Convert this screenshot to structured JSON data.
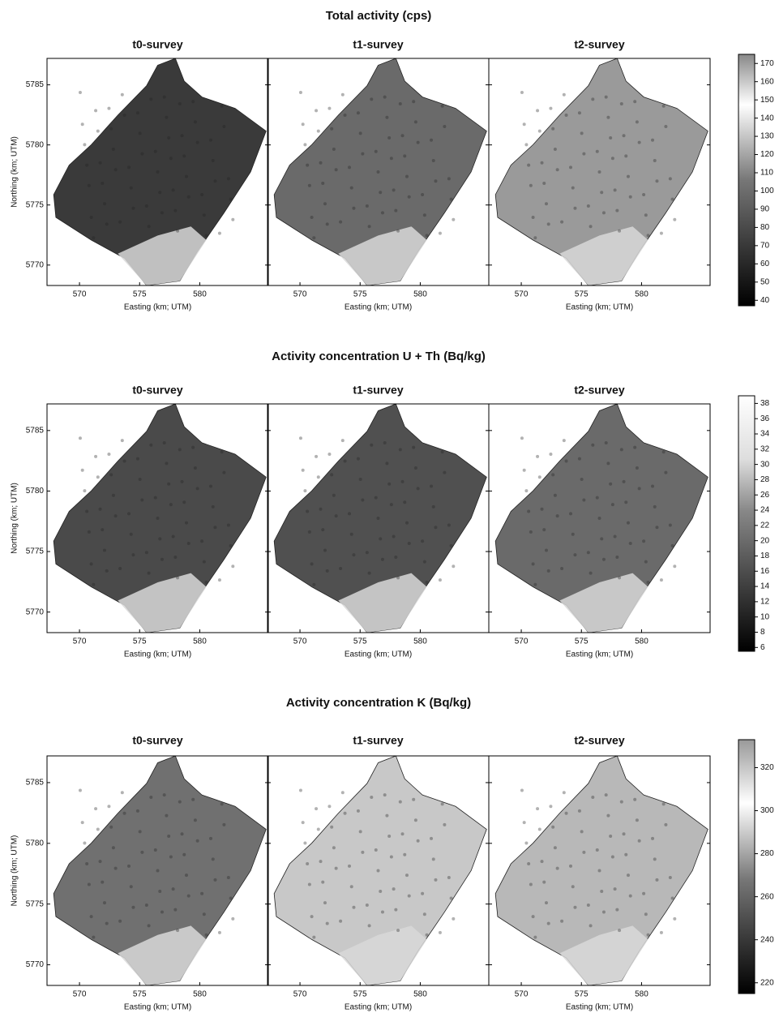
{
  "chart_data": [
    {
      "type": "heatmap",
      "title": "Total activity (cps)",
      "panels": [
        "t0-survey",
        "t1-survey",
        "t2-survey"
      ],
      "xlabel": "Easting (km; UTM)",
      "ylabel": "Northing (km; UTM)",
      "xlim": [
        567.3,
        585.7
      ],
      "ylim": [
        5768.3,
        5787.2
      ],
      "xticks": [
        570,
        575,
        580
      ],
      "yticks": [
        5770,
        5775,
        5780,
        5785
      ],
      "colorbar_lim": [
        37,
        175
      ],
      "colorbar_ticks": [
        40,
        50,
        60,
        70,
        80,
        90,
        100,
        110,
        120,
        130,
        140,
        150,
        160,
        170
      ]
    },
    {
      "type": "heatmap",
      "title": "Activity concentration U + Th (Bq/kg)",
      "panels": [
        "t0-survey",
        "t1-survey",
        "t2-survey"
      ],
      "xlabel": "Easting (km; UTM)",
      "ylabel": "Northing (km; UTM)",
      "xlim": [
        567.3,
        585.7
      ],
      "ylim": [
        5768.3,
        5787.2
      ],
      "xticks": [
        570,
        575,
        580
      ],
      "yticks": [
        5770,
        5775,
        5780,
        5785
      ],
      "colorbar_lim": [
        5.5,
        39
      ],
      "colorbar_ticks": [
        6,
        8,
        10,
        12,
        14,
        16,
        18,
        20,
        22,
        24,
        26,
        28,
        30,
        32,
        34,
        36,
        38
      ]
    },
    {
      "type": "heatmap",
      "title": "Activity concentration K (Bq/kg)",
      "panels": [
        "t0-survey",
        "t1-survey",
        "t2-survey"
      ],
      "xlabel": "Easting (km; UTM)",
      "ylabel": "Northing (km; UTM)",
      "xlim": [
        567.3,
        585.7
      ],
      "ylim": [
        5768.3,
        5787.2
      ],
      "xticks": [
        570,
        575,
        580
      ],
      "yticks": [
        5770,
        5775,
        5780,
        5785
      ],
      "colorbar_lim": [
        215,
        333
      ],
      "colorbar_ticks": [
        220,
        240,
        260,
        280,
        300,
        320
      ]
    }
  ]
}
